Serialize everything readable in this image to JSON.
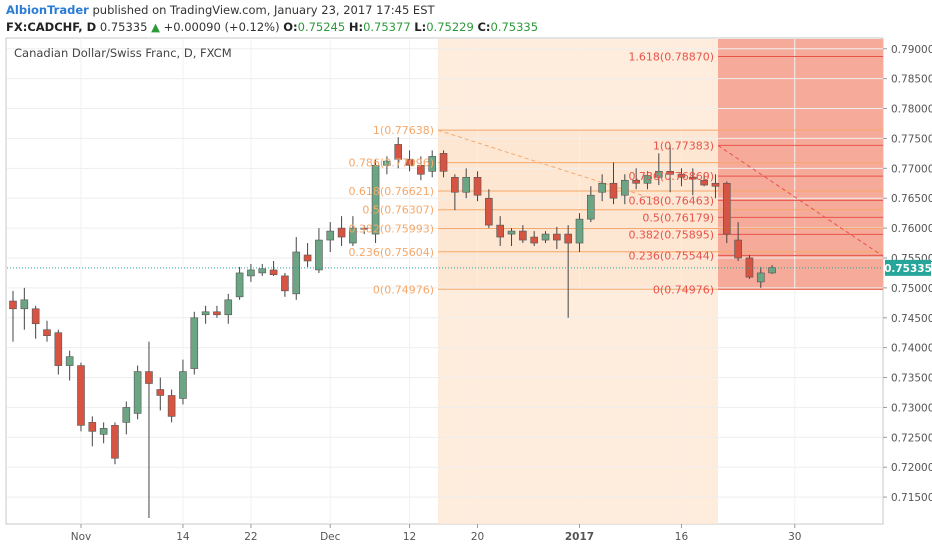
{
  "header": {
    "author": "AlbionTrader",
    "published_text": "published on TradingView.com, January 23, 2017 17:45 EST",
    "symbol": "FX:CADCHF, D",
    "last": "0.75335",
    "change_arrow": "▲",
    "change": "+0.00090 (+0.12%)",
    "o_label": "O:",
    "o_value": "0.75245",
    "h_label": "H:",
    "h_value": "0.75377",
    "l_label": "L:",
    "l_value": "0.75229",
    "c_label": "C:",
    "c_value": "0.75335"
  },
  "colors": {
    "up": "#6ba583",
    "down": "#d75442",
    "fib1": "#f5a86b",
    "fib2": "#e8544a",
    "zone1": "#fde6d2",
    "zone2": "#f6aa9a",
    "price_tag": "#26a69a"
  },
  "chart_data": {
    "type": "candlestick",
    "title": "Canadian Dollar/Swiss Franc, D, FXCM",
    "ylim": [
      0.7105,
      0.7918
    ],
    "y_ticks": [
      "0.79000",
      "0.78500",
      "0.78000",
      "0.77500",
      "0.77000",
      "0.76500",
      "0.76000",
      "0.75500",
      "0.75000",
      "0.74500",
      "0.74000",
      "0.73500",
      "0.73000",
      "0.72500",
      "0.72000",
      "0.71500"
    ],
    "x_ticks": [
      {
        "label": "Nov",
        "i": 6
      },
      {
        "label": "14",
        "i": 15
      },
      {
        "label": "22",
        "i": 21
      },
      {
        "label": "Dec",
        "i": 28
      },
      {
        "label": "12",
        "i": 35
      },
      {
        "label": "20",
        "i": 41
      },
      {
        "label": "2017",
        "i": 50
      },
      {
        "label": "16",
        "i": 59
      },
      {
        "label": "30",
        "i": 69
      }
    ],
    "last_price": "0.75335",
    "candles": [
      {
        "o": 0.7478,
        "h": 0.7495,
        "l": 0.741,
        "c": 0.7465
      },
      {
        "o": 0.7465,
        "h": 0.75,
        "l": 0.743,
        "c": 0.748
      },
      {
        "o": 0.7465,
        "h": 0.747,
        "l": 0.7415,
        "c": 0.744
      },
      {
        "o": 0.743,
        "h": 0.7445,
        "l": 0.741,
        "c": 0.742
      },
      {
        "o": 0.7425,
        "h": 0.743,
        "l": 0.7355,
        "c": 0.737
      },
      {
        "o": 0.737,
        "h": 0.7395,
        "l": 0.7345,
        "c": 0.7385
      },
      {
        "o": 0.737,
        "h": 0.7375,
        "l": 0.726,
        "c": 0.727
      },
      {
        "o": 0.7275,
        "h": 0.7285,
        "l": 0.7235,
        "c": 0.726
      },
      {
        "o": 0.7255,
        "h": 0.7275,
        "l": 0.724,
        "c": 0.7265
      },
      {
        "o": 0.727,
        "h": 0.7275,
        "l": 0.7205,
        "c": 0.7215
      },
      {
        "o": 0.7275,
        "h": 0.731,
        "l": 0.7255,
        "c": 0.73
      },
      {
        "o": 0.729,
        "h": 0.737,
        "l": 0.728,
        "c": 0.736
      },
      {
        "o": 0.736,
        "h": 0.741,
        "l": 0.7115,
        "c": 0.734
      },
      {
        "o": 0.733,
        "h": 0.735,
        "l": 0.7295,
        "c": 0.732
      },
      {
        "o": 0.732,
        "h": 0.733,
        "l": 0.7275,
        "c": 0.7285
      },
      {
        "o": 0.7315,
        "h": 0.738,
        "l": 0.7305,
        "c": 0.736
      },
      {
        "o": 0.7365,
        "h": 0.746,
        "l": 0.7355,
        "c": 0.745
      },
      {
        "o": 0.7455,
        "h": 0.747,
        "l": 0.744,
        "c": 0.746
      },
      {
        "o": 0.746,
        "h": 0.747,
        "l": 0.745,
        "c": 0.7455
      },
      {
        "o": 0.7455,
        "h": 0.749,
        "l": 0.744,
        "c": 0.748
      },
      {
        "o": 0.7485,
        "h": 0.7535,
        "l": 0.748,
        "c": 0.7525
      },
      {
        "o": 0.752,
        "h": 0.754,
        "l": 0.751,
        "c": 0.753
      },
      {
        "o": 0.7525,
        "h": 0.754,
        "l": 0.752,
        "c": 0.7532
      },
      {
        "o": 0.753,
        "h": 0.7545,
        "l": 0.752,
        "c": 0.7522
      },
      {
        "o": 0.752,
        "h": 0.7525,
        "l": 0.7485,
        "c": 0.7495
      },
      {
        "o": 0.749,
        "h": 0.7585,
        "l": 0.748,
        "c": 0.756
      },
      {
        "o": 0.7555,
        "h": 0.7575,
        "l": 0.7535,
        "c": 0.7545
      },
      {
        "o": 0.753,
        "h": 0.76,
        "l": 0.7525,
        "c": 0.758
      },
      {
        "o": 0.758,
        "h": 0.761,
        "l": 0.756,
        "c": 0.7595
      },
      {
        "o": 0.76,
        "h": 0.762,
        "l": 0.757,
        "c": 0.7585
      },
      {
        "o": 0.7575,
        "h": 0.762,
        "l": 0.757,
        "c": 0.76
      },
      {
        "o": 0.76,
        "h": 0.7605,
        "l": 0.759,
        "c": 0.7598
      },
      {
        "o": 0.759,
        "h": 0.7715,
        "l": 0.7575,
        "c": 0.7705
      },
      {
        "o": 0.7705,
        "h": 0.772,
        "l": 0.769,
        "c": 0.7712
      },
      {
        "o": 0.774,
        "h": 0.7752,
        "l": 0.77,
        "c": 0.7715
      },
      {
        "o": 0.7715,
        "h": 0.773,
        "l": 0.7695,
        "c": 0.7705
      },
      {
        "o": 0.7705,
        "h": 0.772,
        "l": 0.768,
        "c": 0.769
      },
      {
        "o": 0.7695,
        "h": 0.773,
        "l": 0.7685,
        "c": 0.772
      },
      {
        "o": 0.7725,
        "h": 0.773,
        "l": 0.7685,
        "c": 0.7695
      },
      {
        "o": 0.7685,
        "h": 0.769,
        "l": 0.763,
        "c": 0.766
      },
      {
        "o": 0.766,
        "h": 0.77,
        "l": 0.765,
        "c": 0.7685
      },
      {
        "o": 0.7685,
        "h": 0.7695,
        "l": 0.7645,
        "c": 0.7655
      },
      {
        "o": 0.765,
        "h": 0.7665,
        "l": 0.76,
        "c": 0.7605
      },
      {
        "o": 0.7605,
        "h": 0.762,
        "l": 0.757,
        "c": 0.7585
      },
      {
        "o": 0.759,
        "h": 0.76,
        "l": 0.757,
        "c": 0.7595
      },
      {
        "o": 0.7595,
        "h": 0.7605,
        "l": 0.7575,
        "c": 0.758
      },
      {
        "o": 0.7585,
        "h": 0.7595,
        "l": 0.757,
        "c": 0.7575
      },
      {
        "o": 0.758,
        "h": 0.7595,
        "l": 0.7575,
        "c": 0.759
      },
      {
        "o": 0.759,
        "h": 0.7602,
        "l": 0.7565,
        "c": 0.758
      },
      {
        "o": 0.759,
        "h": 0.7605,
        "l": 0.745,
        "c": 0.7575
      },
      {
        "o": 0.7575,
        "h": 0.7625,
        "l": 0.756,
        "c": 0.7615
      },
      {
        "o": 0.7615,
        "h": 0.767,
        "l": 0.761,
        "c": 0.7655
      },
      {
        "o": 0.766,
        "h": 0.769,
        "l": 0.7645,
        "c": 0.7675
      },
      {
        "o": 0.7675,
        "h": 0.771,
        "l": 0.764,
        "c": 0.765
      },
      {
        "o": 0.7655,
        "h": 0.769,
        "l": 0.764,
        "c": 0.768
      },
      {
        "o": 0.768,
        "h": 0.77,
        "l": 0.7665,
        "c": 0.7675
      },
      {
        "o": 0.7675,
        "h": 0.7695,
        "l": 0.7665,
        "c": 0.7688
      },
      {
        "o": 0.7685,
        "h": 0.7725,
        "l": 0.7672,
        "c": 0.7695
      },
      {
        "o": 0.7695,
        "h": 0.7738,
        "l": 0.766,
        "c": 0.769
      },
      {
        "o": 0.769,
        "h": 0.77,
        "l": 0.767,
        "c": 0.7685
      },
      {
        "o": 0.7685,
        "h": 0.77,
        "l": 0.7655,
        "c": 0.7682
      },
      {
        "o": 0.768,
        "h": 0.769,
        "l": 0.767,
        "c": 0.7672
      },
      {
        "o": 0.7675,
        "h": 0.769,
        "l": 0.765,
        "c": 0.767
      },
      {
        "o": 0.7675,
        "h": 0.7678,
        "l": 0.7575,
        "c": 0.759
      },
      {
        "o": 0.758,
        "h": 0.761,
        "l": 0.7545,
        "c": 0.755
      },
      {
        "o": 0.755,
        "h": 0.7555,
        "l": 0.7515,
        "c": 0.7518
      },
      {
        "o": 0.751,
        "h": 0.7535,
        "l": 0.75,
        "c": 0.7525
      },
      {
        "o": 0.7525,
        "h": 0.7538,
        "l": 0.7523,
        "c": 0.7534
      }
    ],
    "fib_sets": [
      {
        "levels": [
          {
            "label": "1(0.77638)",
            "value": 0.77638
          },
          {
            "label": "0.786(0.77096)",
            "value": 0.77096
          },
          {
            "label": "0.618(0.76621)",
            "value": 0.76621
          },
          {
            "label": "0.5(0.76307)",
            "value": 0.76307
          },
          {
            "label": "0.382(0.75993)",
            "value": 0.75993
          },
          {
            "label": "0.236(0.75604)",
            "value": 0.75604
          },
          {
            "label": "0(0.74976)",
            "value": 0.74976
          }
        ]
      },
      {
        "levels": [
          {
            "label": "1.618(0.78870)",
            "value": 0.7887
          },
          {
            "label": "1(0.77383)",
            "value": 0.77383
          },
          {
            "label": "0.786(0.76869)",
            "value": 0.76869
          },
          {
            "label": "0.618(0.76463)",
            "value": 0.76463
          },
          {
            "label": "0.5(0.76179)",
            "value": 0.76179
          },
          {
            "label": "0.382(0.75895)",
            "value": 0.75895
          },
          {
            "label": "0.236(0.75544)",
            "value": 0.75544
          },
          {
            "label": "0(0.74976)",
            "value": 0.74976
          }
        ]
      }
    ]
  }
}
